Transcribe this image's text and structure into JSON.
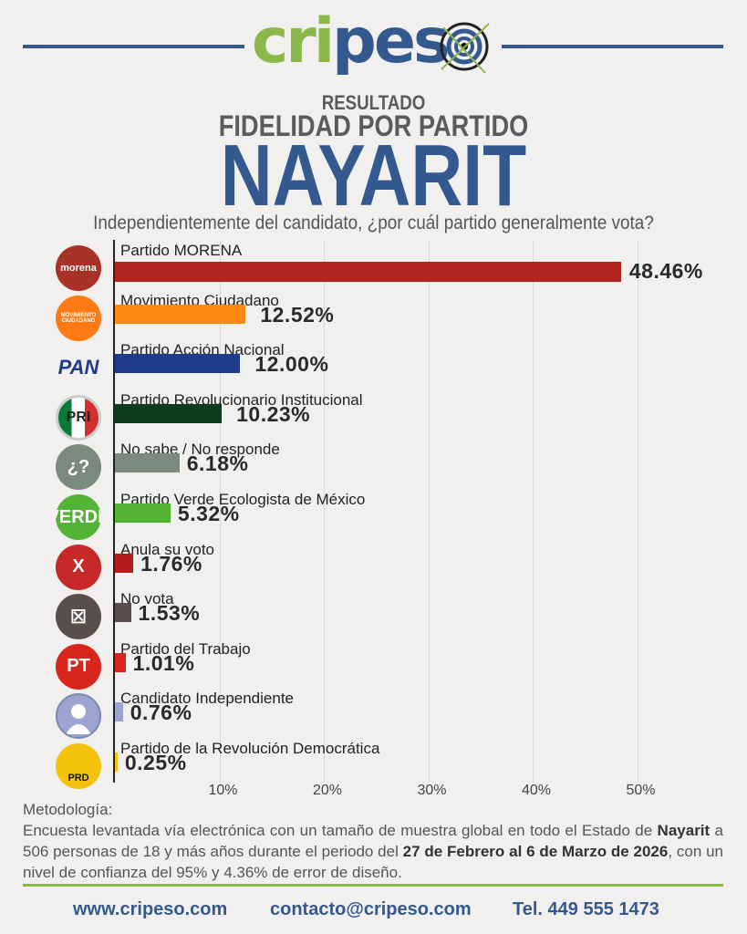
{
  "header": {
    "logo_text": "cripeso",
    "kicker": "RESULTADO",
    "title": "FIDELIDAD POR PARTIDO",
    "state": "NAYARIT",
    "question": "Independientemente del candidato, ¿por cuál partido generalmente vota?"
  },
  "colors": {
    "brand_blue": "#34598e",
    "brand_green": "#8bb84a"
  },
  "chart_data": {
    "type": "bar",
    "orientation": "horizontal",
    "xlim": [
      0,
      55
    ],
    "grid": true,
    "ticks": [
      "10%",
      "20%",
      "30%",
      "40%",
      "50%"
    ],
    "tick_values": [
      10,
      20,
      30,
      40,
      50
    ],
    "categories": [
      "Partido MORENA",
      "Movimiento Ciudadano",
      "Partido Acción Nacional",
      "Partido Revolucionario Institucional",
      "No sabe / No responde",
      "Partido Verde Ecologista de México",
      "Anula su voto",
      "No vota",
      "Partido del Trabajo",
      "Candidato Independiente",
      "Partido de la Revolución Democrática"
    ],
    "values": [
      48.46,
      12.52,
      12.0,
      10.23,
      6.18,
      5.32,
      1.76,
      1.53,
      1.01,
      0.76,
      0.25
    ],
    "value_labels": [
      "48.46%",
      "12.52%",
      "12.00%",
      "10.23%",
      "6.18%",
      "5.32%",
      "1.76%",
      "1.53%",
      "1.01%",
      "0.76%",
      "0.25%"
    ],
    "colors": [
      "#b0261f",
      "#ff8a12",
      "#1f3b8c",
      "#0d3b1c",
      "#7b8a7e",
      "#52b335",
      "#b71c1c",
      "#5a4d4d",
      "#d9261c",
      "#9aa6cf",
      "#f4c20d"
    ],
    "icons": [
      {
        "name": "morena-logo",
        "text": "morena",
        "bg": "#a93226"
      },
      {
        "name": "movimiento-ciudadano-logo",
        "text": "MOVIMIENTO CIUDADANO",
        "bg": "#ff7a12"
      },
      {
        "name": "pan-logo",
        "text": "PAN",
        "bg": "transparent"
      },
      {
        "name": "pri-logo",
        "text": "PRI",
        "bg": "#fff"
      },
      {
        "name": "question-icon",
        "text": "¿?",
        "bg": "#7b8a7e"
      },
      {
        "name": "verde-logo",
        "text": "VERDE",
        "bg": "#52b335"
      },
      {
        "name": "x-icon",
        "text": "X",
        "bg": "#c62828"
      },
      {
        "name": "ballot-box-icon",
        "text": "☒",
        "bg": "#5a4d4d"
      },
      {
        "name": "pt-logo",
        "text": "PT",
        "bg": "#d9261c"
      },
      {
        "name": "person-icon",
        "text": "",
        "bg": "#9aa6cf"
      },
      {
        "name": "prd-logo",
        "text": "PRD",
        "bg": "#f4c20d"
      }
    ]
  },
  "methodology": {
    "title": "Metodología:",
    "p1": "Encuesta levantada vía electrónica con un tamaño de muestra global en todo el Estado de ",
    "b1": "Nayarit",
    "p2": " a 506 personas de 18 y más años durante el periodo del ",
    "b2": "27 de Febrero al 6 de Marzo de 2026",
    "p3": ", con un nivel de confianza del 95% y 4.36% de error de diseño."
  },
  "footer": {
    "web": "www.cripeso.com",
    "email": "contacto@cripeso.com",
    "phone": "Tel. 449 555 1473"
  }
}
